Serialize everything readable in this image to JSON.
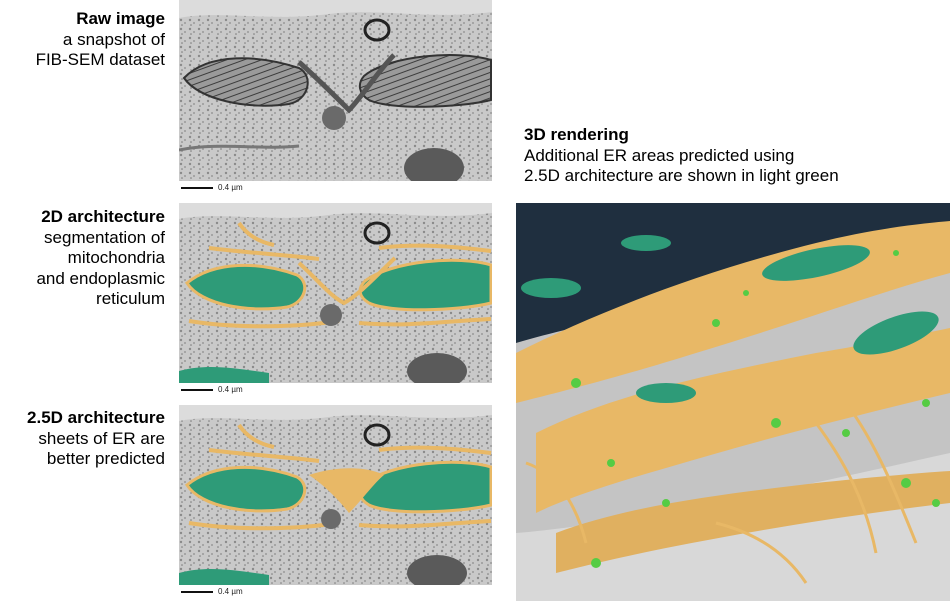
{
  "panels": [
    {
      "title": "Raw image",
      "lines": [
        "a snapshot of",
        "FIB-SEM dataset"
      ],
      "scale_label": "0.4 µm"
    },
    {
      "title": "2D architecture",
      "lines": [
        "segmentation of",
        "mitochondria",
        "and endoplasmic",
        "reticulum"
      ],
      "scale_label": "0.4 µm"
    },
    {
      "title": "2.5D architecture",
      "lines": [
        "sheets of ER are",
        "better predicted"
      ],
      "scale_label": "0.4 µm"
    }
  ],
  "rendering": {
    "title": "3D rendering",
    "lines": [
      "Additional ER areas predicted using",
      "2.5D architecture are shown in light green"
    ]
  },
  "colors": {
    "er": "#e8b866",
    "mitochondria": "#2e9b78",
    "extra_er": "#55cc44",
    "background_em": "#c7c7c7",
    "render_bg": "#1f2f3f"
  }
}
